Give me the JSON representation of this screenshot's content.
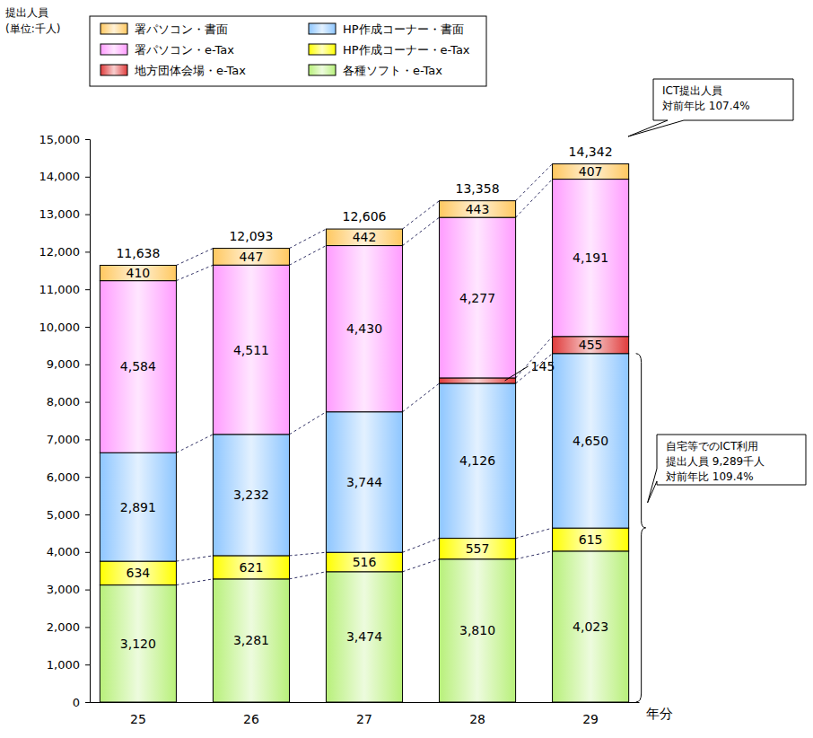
{
  "chart_data": {
    "type": "bar",
    "stacked": true,
    "data_labels": true,
    "legend": "top-left",
    "y_label": [
      "提出人員",
      "(単位:千人)"
    ],
    "x_label": "年分",
    "categories": [
      "25",
      "26",
      "27",
      "28",
      "29"
    ],
    "ylim": [
      0,
      15000
    ],
    "yticks": [
      0,
      {
        "value": 1000,
        "label": "1,000"
      },
      {
        "value": 2000,
        "label": "2,000"
      },
      {
        "value": 3000,
        "label": "3,000"
      },
      {
        "value": 4000,
        "label": "4,000"
      },
      {
        "value": 5000,
        "label": "5,000"
      },
      {
        "value": 6000,
        "label": "6,000"
      },
      {
        "value": 7000,
        "label": "7,000"
      },
      {
        "value": 8000,
        "label": "8,000"
      },
      {
        "value": 9000,
        "label": "9,000"
      },
      {
        "value": 10000,
        "label": "10,000"
      },
      {
        "value": 11000,
        "label": "11,000"
      },
      {
        "value": 12000,
        "label": "12,000"
      },
      {
        "value": 13000,
        "label": "13,000"
      },
      {
        "value": 14000,
        "label": "14,000"
      },
      {
        "value": 15000,
        "label": "15,000"
      }
    ],
    "series": [
      {
        "name": "各種ソフト・e-Tax",
        "color": "#b8f07a",
        "values": [
          3120,
          3281,
          3474,
          3810,
          4023
        ],
        "value_labels": [
          "3,120",
          "3,281",
          "3,474",
          "3,810",
          "4,023"
        ]
      },
      {
        "name": "HP作成コーナー・e-Tax",
        "color": "#ffff00",
        "values": [
          634,
          621,
          516,
          557,
          615
        ]
      },
      {
        "name": "HP作成コーナー・書面",
        "color": "#8ec6ff",
        "values": [
          2891,
          3232,
          3744,
          4126,
          4650
        ],
        "value_labels": [
          "2,891",
          "3,232",
          "3,744",
          "4,126",
          "4,650"
        ]
      },
      {
        "name": "地方団体会場・e-Tax",
        "color": "#e03c3c",
        "values": [
          null,
          null,
          null,
          145,
          455
        ]
      },
      {
        "name": "署パソコン・e-Tax",
        "color": "#ff9cff",
        "values": [
          4584,
          4511,
          4430,
          4277,
          4191
        ],
        "value_labels": [
          "4,584",
          "4,511",
          "4,430",
          "4,277",
          "4,191"
        ]
      },
      {
        "name": "署パソコン・書面",
        "color": "#ffc860",
        "values": [
          410,
          447,
          442,
          443,
          407
        ]
      }
    ],
    "totals": {
      "values": [
        11638,
        12093,
        12606,
        13358,
        14342
      ],
      "value_labels": [
        "11,638",
        "12,093",
        "12,606",
        "13,358",
        "14,342"
      ]
    },
    "annotations": [
      {
        "text": [
          "ICT提出人員",
          "対前年比 107.4%"
        ]
      },
      {
        "text": [
          "自宅等でのICT利用",
          "提出人員 9,289千人",
          "対前年比 109.4%"
        ]
      }
    ]
  }
}
